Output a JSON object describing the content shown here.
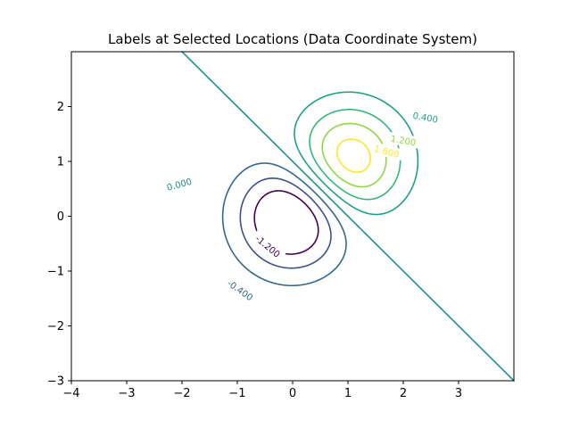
{
  "chart_data": {
    "type": "contour",
    "title": "Labels at Selected Locations (Data Coordinate System)",
    "xlabel": "",
    "ylabel": "",
    "xlim": [
      -4,
      4
    ],
    "ylim": [
      -3,
      3
    ],
    "x_ticks": [
      -4,
      -3,
      -2,
      -1,
      0,
      1,
      2,
      3
    ],
    "y_ticks": [
      -3,
      -2,
      -1,
      0,
      1,
      2
    ],
    "x_tick_labels": [
      "−4",
      "−3",
      "−2",
      "−1",
      "0",
      "1",
      "2",
      "3"
    ],
    "y_tick_labels": [
      "−3",
      "−2",
      "−1",
      "0",
      "1",
      "2"
    ],
    "colormap": "viridis",
    "grid": false,
    "levels": [
      {
        "value": -1.2,
        "color": "#440154"
      },
      {
        "value": -0.8,
        "color": "#3b528b"
      },
      {
        "value": -0.4,
        "color": "#31688e"
      },
      {
        "value": 0.0,
        "color": "#21918c"
      },
      {
        "value": 0.4,
        "color": "#1fa187"
      },
      {
        "value": 0.8,
        "color": "#35b779"
      },
      {
        "value": 1.2,
        "color": "#90d743"
      },
      {
        "value": 1.6,
        "color": "#fde725"
      }
    ],
    "labels": [
      {
        "text": "0.400",
        "x": 2.4,
        "y": 1.8,
        "color": "#1fa187",
        "rotate": 10
      },
      {
        "text": "1.200",
        "x": 2.0,
        "y": 1.38,
        "color": "#90d743",
        "rotate": 10
      },
      {
        "text": "1.600",
        "x": 1.7,
        "y": 1.18,
        "color": "#fde725",
        "rotate": 15
      },
      {
        "text": "0.000",
        "x": -2.05,
        "y": 0.58,
        "color": "#21918c",
        "rotate": -15
      },
      {
        "text": "-1.200",
        "x": -0.45,
        "y": -0.55,
        "color": "#440154",
        "rotate": 40
      },
      {
        "text": "-0.400",
        "x": -0.95,
        "y": -1.35,
        "color": "#31688e",
        "rotate": 35
      }
    ]
  }
}
